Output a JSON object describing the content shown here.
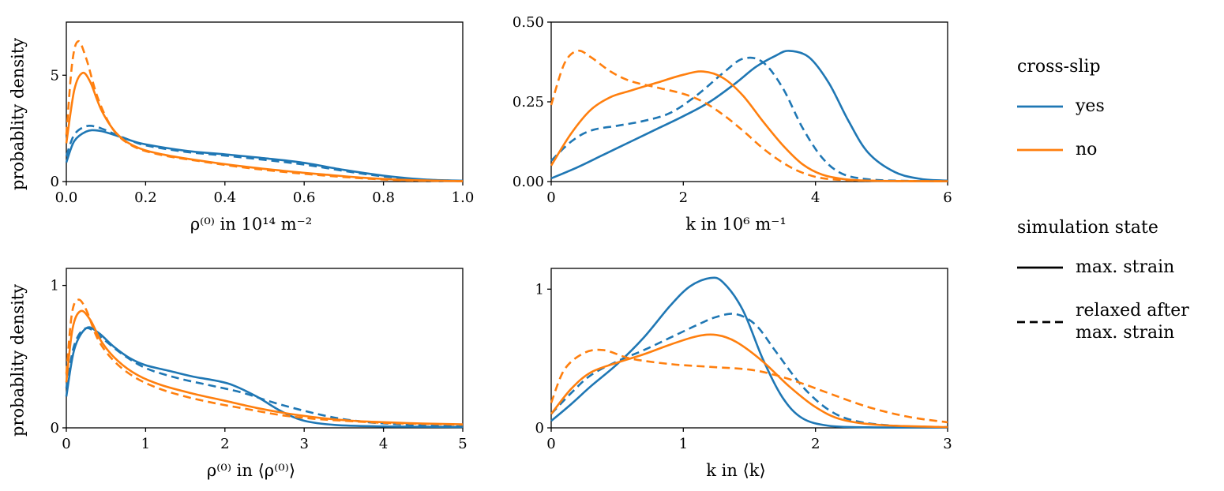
{
  "colors": {
    "blue": "#1f77b4",
    "orange": "#ff7f0e",
    "black": "#000000"
  },
  "legend": {
    "cross_slip": {
      "title": "cross-slip",
      "items": [
        {
          "label": "yes",
          "color": "blue",
          "dash": false
        },
        {
          "label": "no",
          "color": "orange",
          "dash": false
        }
      ]
    },
    "simulation_state": {
      "title": "simulation state",
      "items": [
        {
          "label": "max. strain",
          "color": "black",
          "dash": false
        },
        {
          "label": "relaxed after\nmax. strain",
          "color": "black",
          "dash": true
        }
      ]
    }
  },
  "chart_data": [
    {
      "type": "line",
      "title": "",
      "xlabel": "ρ⁽⁰⁾ in 10¹⁴ m⁻²",
      "ylabel": "probablity density",
      "xlim": [
        0,
        1.0
      ],
      "ylim": [
        0,
        7.5
      ],
      "xticks": [
        0,
        0.2,
        0.4,
        0.6,
        0.8,
        1.0
      ],
      "xtick_labels": [
        "0.0",
        "0.2",
        "0.4",
        "0.6",
        "0.8",
        "1.0"
      ],
      "yticks": [
        0,
        5
      ],
      "ytick_labels": [
        "0",
        "5"
      ],
      "grid": false,
      "series": [
        {
          "name": "cross-slip=yes, max. strain",
          "color": "blue",
          "dash": false,
          "x": [
            0,
            0.02,
            0.05,
            0.08,
            0.12,
            0.16,
            0.2,
            0.3,
            0.4,
            0.5,
            0.6,
            0.7,
            0.8,
            0.9,
            1.0
          ],
          "y": [
            0.9,
            1.9,
            2.35,
            2.4,
            2.2,
            1.95,
            1.75,
            1.45,
            1.28,
            1.1,
            0.88,
            0.55,
            0.28,
            0.1,
            0.04
          ]
        },
        {
          "name": "cross-slip=yes, relaxed after max. strain",
          "color": "blue",
          "dash": true,
          "x": [
            0,
            0.02,
            0.05,
            0.08,
            0.12,
            0.16,
            0.2,
            0.3,
            0.4,
            0.5,
            0.6,
            0.7,
            0.8,
            0.9,
            1.0
          ],
          "y": [
            1.2,
            2.2,
            2.6,
            2.55,
            2.25,
            1.95,
            1.7,
            1.4,
            1.22,
            1.02,
            0.8,
            0.5,
            0.24,
            0.09,
            0.03
          ]
        },
        {
          "name": "cross-slip=no, max. strain",
          "color": "orange",
          "dash": false,
          "x": [
            0,
            0.02,
            0.04,
            0.06,
            0.09,
            0.13,
            0.18,
            0.25,
            0.35,
            0.45,
            0.55,
            0.65,
            0.75,
            0.85,
            1.0
          ],
          "y": [
            1.8,
            4.3,
            5.1,
            4.7,
            3.3,
            2.2,
            1.6,
            1.25,
            0.95,
            0.7,
            0.5,
            0.33,
            0.18,
            0.08,
            0.02
          ]
        },
        {
          "name": "cross-slip=no, relaxed after max. strain",
          "color": "orange",
          "dash": true,
          "x": [
            0,
            0.015,
            0.03,
            0.05,
            0.08,
            0.12,
            0.17,
            0.24,
            0.34,
            0.44,
            0.54,
            0.64,
            0.75,
            0.85,
            1.0
          ],
          "y": [
            2.2,
            5.6,
            6.6,
            5.8,
            3.9,
            2.4,
            1.65,
            1.25,
            0.95,
            0.68,
            0.47,
            0.3,
            0.15,
            0.06,
            0.02
          ]
        }
      ]
    },
    {
      "type": "line",
      "title": "",
      "xlabel": "k in 10⁶ m⁻¹",
      "ylabel": "",
      "xlim": [
        0,
        6
      ],
      "ylim": [
        0,
        0.5
      ],
      "xticks": [
        0,
        2,
        4,
        6
      ],
      "xtick_labels": [
        "0",
        "2",
        "4",
        "6"
      ],
      "yticks": [
        0,
        0.25,
        0.5
      ],
      "ytick_labels": [
        "0.00",
        "0.25",
        "0.50"
      ],
      "grid": false,
      "series": [
        {
          "name": "cross-slip=yes, max. strain",
          "color": "blue",
          "dash": false,
          "x": [
            0,
            0.4,
            0.8,
            1.2,
            1.6,
            2.0,
            2.4,
            2.8,
            3.1,
            3.4,
            3.6,
            3.9,
            4.2,
            4.5,
            4.8,
            5.2,
            5.6,
            6.0
          ],
          "y": [
            0.01,
            0.045,
            0.085,
            0.125,
            0.165,
            0.205,
            0.25,
            0.31,
            0.36,
            0.395,
            0.41,
            0.39,
            0.31,
            0.19,
            0.09,
            0.03,
            0.008,
            0.003
          ]
        },
        {
          "name": "cross-slip=yes, relaxed after max. strain",
          "color": "blue",
          "dash": true,
          "x": [
            0,
            0.3,
            0.6,
            1.0,
            1.4,
            1.8,
            2.2,
            2.6,
            2.9,
            3.2,
            3.5,
            3.8,
            4.1,
            4.4,
            4.8,
            5.4,
            6.0
          ],
          "y": [
            0.065,
            0.125,
            0.16,
            0.175,
            0.19,
            0.215,
            0.27,
            0.34,
            0.385,
            0.375,
            0.295,
            0.17,
            0.075,
            0.025,
            0.007,
            0.002,
            0.001
          ]
        },
        {
          "name": "cross-slip=no, max. strain",
          "color": "orange",
          "dash": false,
          "x": [
            0,
            0.3,
            0.6,
            0.9,
            1.2,
            1.6,
            2.0,
            2.3,
            2.6,
            2.9,
            3.2,
            3.5,
            3.8,
            4.1,
            4.5,
            5.0,
            6.0
          ],
          "y": [
            0.05,
            0.15,
            0.225,
            0.265,
            0.285,
            0.31,
            0.335,
            0.345,
            0.325,
            0.27,
            0.19,
            0.115,
            0.055,
            0.022,
            0.006,
            0.002,
            0.001
          ]
        },
        {
          "name": "cross-slip=no, relaxed after max. strain",
          "color": "orange",
          "dash": true,
          "x": [
            0,
            0.2,
            0.4,
            0.6,
            0.9,
            1.2,
            1.6,
            2.0,
            2.3,
            2.6,
            2.9,
            3.2,
            3.5,
            3.8,
            4.2,
            5.0,
            6.0
          ],
          "y": [
            0.24,
            0.37,
            0.41,
            0.39,
            0.345,
            0.315,
            0.295,
            0.275,
            0.25,
            0.21,
            0.16,
            0.105,
            0.06,
            0.028,
            0.008,
            0.002,
            0.001
          ]
        }
      ]
    },
    {
      "type": "line",
      "title": "",
      "xlabel": "ρ⁽⁰⁾ in ⟨ρ⁽⁰⁾⟩",
      "ylabel": "probablity density",
      "xlim": [
        0,
        5
      ],
      "ylim": [
        0,
        1.12
      ],
      "xticks": [
        0,
        1,
        2,
        3,
        4,
        5
      ],
      "xtick_labels": [
        "0",
        "1",
        "2",
        "3",
        "4",
        "5"
      ],
      "yticks": [
        0,
        1
      ],
      "ytick_labels": [
        "0",
        "1"
      ],
      "grid": false,
      "series": [
        {
          "name": "cross-slip=yes, max. strain",
          "color": "blue",
          "dash": false,
          "x": [
            0,
            0.1,
            0.25,
            0.4,
            0.6,
            0.8,
            1.0,
            1.3,
            1.6,
            1.9,
            2.1,
            2.4,
            2.7,
            3.0,
            3.4,
            4.0,
            4.5,
            5.0
          ],
          "y": [
            0.22,
            0.55,
            0.7,
            0.67,
            0.57,
            0.49,
            0.44,
            0.4,
            0.36,
            0.33,
            0.3,
            0.22,
            0.12,
            0.05,
            0.02,
            0.01,
            0.008,
            0.006
          ]
        },
        {
          "name": "cross-slip=yes, relaxed after max. strain",
          "color": "blue",
          "dash": true,
          "x": [
            0,
            0.1,
            0.25,
            0.45,
            0.7,
            1.0,
            1.4,
            1.8,
            2.2,
            2.6,
            3.0,
            3.4,
            3.8,
            4.2,
            4.6,
            5.0
          ],
          "y": [
            0.28,
            0.58,
            0.7,
            0.63,
            0.52,
            0.42,
            0.35,
            0.3,
            0.25,
            0.18,
            0.12,
            0.07,
            0.04,
            0.025,
            0.015,
            0.01
          ]
        },
        {
          "name": "cross-slip=no, max. strain",
          "color": "orange",
          "dash": false,
          "x": [
            0,
            0.08,
            0.18,
            0.3,
            0.45,
            0.65,
            0.9,
            1.2,
            1.6,
            2.0,
            2.4,
            2.8,
            3.2,
            3.6,
            4.0,
            4.5,
            5.0
          ],
          "y": [
            0.32,
            0.7,
            0.82,
            0.76,
            0.6,
            0.47,
            0.37,
            0.3,
            0.24,
            0.19,
            0.14,
            0.1,
            0.07,
            0.05,
            0.04,
            0.03,
            0.025
          ]
        },
        {
          "name": "cross-slip=no, relaxed after max. strain",
          "color": "orange",
          "dash": true,
          "x": [
            0,
            0.07,
            0.15,
            0.25,
            0.4,
            0.6,
            0.85,
            1.15,
            1.5,
            1.9,
            2.3,
            2.7,
            3.1,
            3.5,
            4.0,
            4.5,
            5.0
          ],
          "y": [
            0.38,
            0.8,
            0.9,
            0.83,
            0.62,
            0.47,
            0.36,
            0.28,
            0.22,
            0.17,
            0.13,
            0.09,
            0.065,
            0.05,
            0.035,
            0.028,
            0.022
          ]
        }
      ]
    },
    {
      "type": "line",
      "title": "",
      "xlabel": "k in ⟨k⟩",
      "ylabel": "",
      "xlim": [
        0,
        3
      ],
      "ylim": [
        0,
        1.15
      ],
      "xticks": [
        0,
        1,
        2,
        3
      ],
      "xtick_labels": [
        "0",
        "1",
        "2",
        "3"
      ],
      "yticks": [
        0,
        1
      ],
      "ytick_labels": [
        "0",
        "1"
      ],
      "grid": false,
      "series": [
        {
          "name": "cross-slip=yes, max. strain",
          "color": "blue",
          "dash": false,
          "x": [
            0,
            0.15,
            0.3,
            0.5,
            0.7,
            0.9,
            1.05,
            1.2,
            1.3,
            1.45,
            1.6,
            1.75,
            1.9,
            2.1,
            2.4,
            3.0
          ],
          "y": [
            0.05,
            0.17,
            0.3,
            0.46,
            0.65,
            0.88,
            1.02,
            1.08,
            1.05,
            0.85,
            0.5,
            0.22,
            0.07,
            0.015,
            0.004,
            0.002
          ]
        },
        {
          "name": "cross-slip=yes, relaxed after max. strain",
          "color": "blue",
          "dash": true,
          "x": [
            0,
            0.15,
            0.3,
            0.5,
            0.7,
            0.9,
            1.1,
            1.25,
            1.4,
            1.55,
            1.7,
            1.9,
            2.1,
            2.3,
            2.6,
            3.0
          ],
          "y": [
            0.1,
            0.25,
            0.38,
            0.48,
            0.56,
            0.65,
            0.74,
            0.8,
            0.82,
            0.74,
            0.55,
            0.3,
            0.13,
            0.05,
            0.015,
            0.005
          ]
        },
        {
          "name": "cross-slip=no, max. strain",
          "color": "orange",
          "dash": false,
          "x": [
            0,
            0.15,
            0.3,
            0.5,
            0.7,
            0.9,
            1.1,
            1.25,
            1.4,
            1.6,
            1.8,
            2.0,
            2.2,
            2.5,
            3.0
          ],
          "y": [
            0.1,
            0.28,
            0.4,
            0.47,
            0.53,
            0.6,
            0.66,
            0.67,
            0.62,
            0.48,
            0.3,
            0.15,
            0.06,
            0.02,
            0.005
          ]
        },
        {
          "name": "cross-slip=no, relaxed after max. strain",
          "color": "orange",
          "dash": true,
          "x": [
            0,
            0.1,
            0.25,
            0.4,
            0.6,
            0.9,
            1.2,
            1.5,
            1.7,
            1.9,
            2.1,
            2.4,
            2.7,
            3.0
          ],
          "y": [
            0.18,
            0.42,
            0.54,
            0.56,
            0.5,
            0.46,
            0.44,
            0.42,
            0.38,
            0.32,
            0.25,
            0.15,
            0.08,
            0.04
          ]
        }
      ]
    }
  ]
}
